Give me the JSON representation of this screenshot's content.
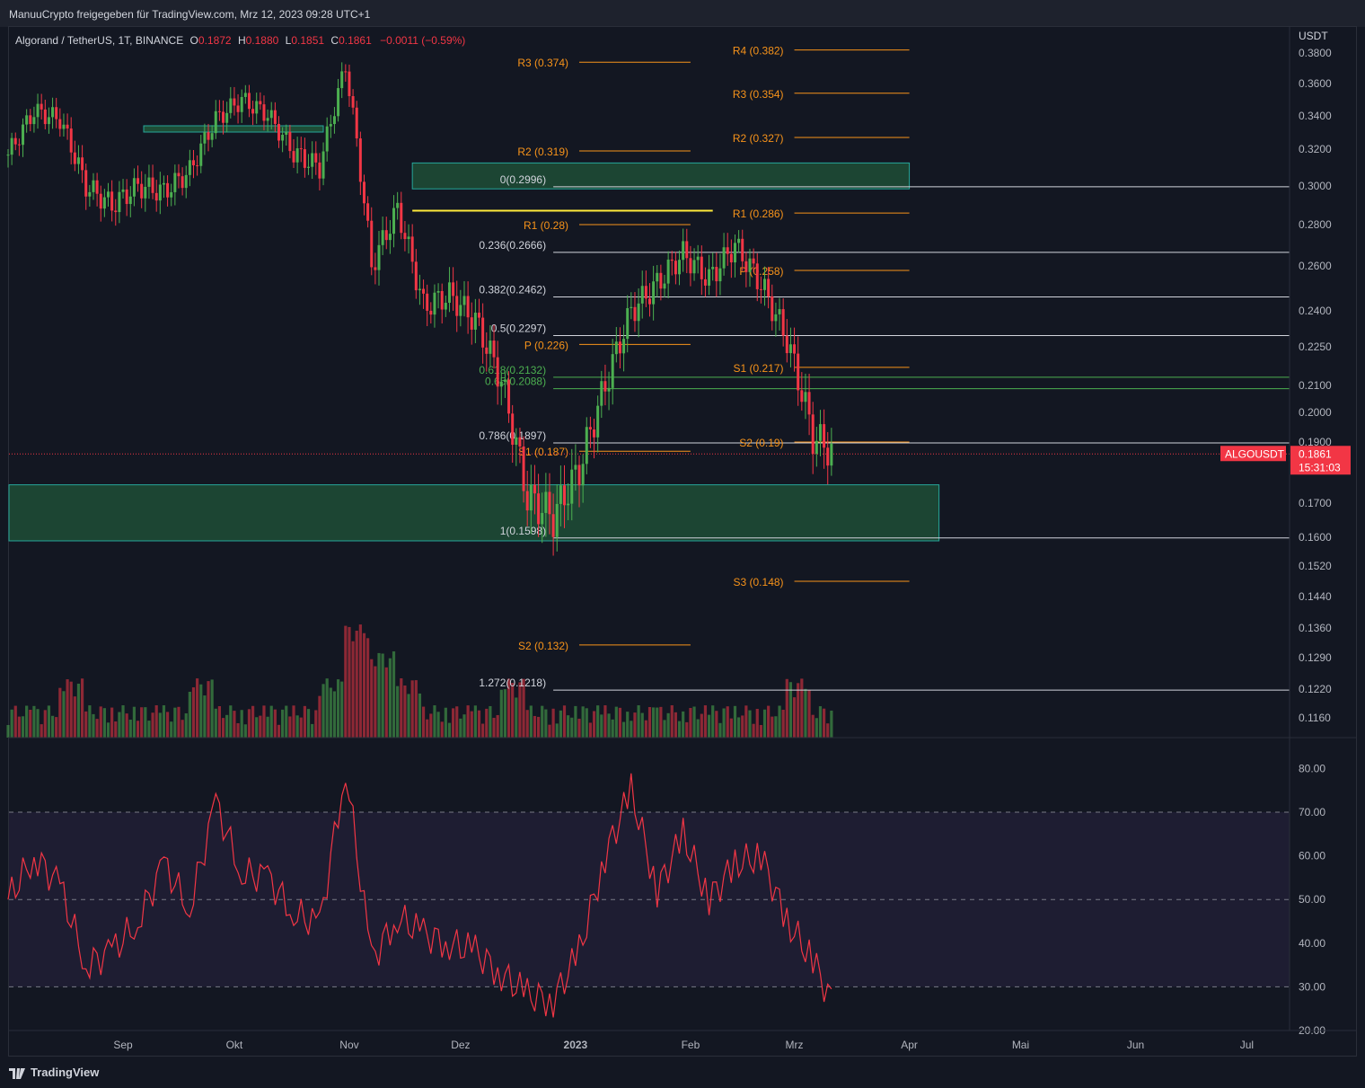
{
  "header": {
    "share_text": "ManuuCrypto freigegeben für TradingView.com, Mrz 12, 2023 09:28 UTC+1"
  },
  "legend": {
    "pair": "Algorand / TetherUS, 1T, BINANCE",
    "open_label": "O",
    "open": "0.1872",
    "high_label": "H",
    "high": "0.1880",
    "low_label": "L",
    "low": "0.1851",
    "close_label": "C",
    "close": "0.1861",
    "change": "−0.0011 (−0.59%)"
  },
  "footer": {
    "brand": "TradingView"
  },
  "colors": {
    "up": "#26a69a",
    "candle_up": "#4caf50",
    "down": "#f23645",
    "pivot": "#f7931a",
    "fib_green": "#4caf50",
    "zone": "#1e4d36",
    "rsi": "#f23645",
    "rsi_band": "#7e57c2",
    "background": "#131722"
  },
  "chart_data": [
    {
      "type": "candlestick",
      "symbol": "ALGOUSDT",
      "price_axis_unit": "USDT",
      "price_ticks": [
        "0.3800",
        "0.3600",
        "0.3400",
        "0.3200",
        "0.3000",
        "0.2800",
        "0.2600",
        "0.2400",
        "0.2250",
        "0.2100",
        "0.2000",
        "0.1900",
        "0.1700",
        "0.1600",
        "0.1520",
        "0.1440",
        "0.1360",
        "0.1290",
        "0.1220",
        "0.1160"
      ],
      "x_ticks": [
        "Sep",
        "Okt",
        "Nov",
        "Dez",
        "2023",
        "Feb",
        "Mrz",
        "Apr",
        "Mai",
        "Jun",
        "Jul"
      ],
      "last_price": {
        "label": "ALGOUSDT",
        "value": "0.1861",
        "countdown": "15:31:03"
      },
      "fibonacci": [
        {
          "label": "0(0.2996)",
          "value": 0.2996
        },
        {
          "label": "0.236(0.2666)",
          "value": 0.2666
        },
        {
          "label": "0.382(0.2462)",
          "value": 0.2462
        },
        {
          "label": "0.5(0.2297)",
          "value": 0.2297
        },
        {
          "label": "0.618(0.2132)",
          "value": 0.2132
        },
        {
          "label": "0.65(0.2088)",
          "value": 0.2088
        },
        {
          "label": "0.786(0.1897)",
          "value": 0.1897
        },
        {
          "label": "1(0.1598)",
          "value": 0.1598
        },
        {
          "label": "1.272(0.1218)",
          "value": 0.1218
        }
      ],
      "pivots_january": [
        {
          "label": "R3 (0.374)",
          "value": 0.374
        },
        {
          "label": "R2 (0.319)",
          "value": 0.319
        },
        {
          "label": "R1 (0.28)",
          "value": 0.28
        },
        {
          "label": "P (0.226)",
          "value": 0.226
        },
        {
          "label": "S1 (0.187)",
          "value": 0.187
        },
        {
          "label": "S2 (0.132)",
          "value": 0.132
        }
      ],
      "pivots_february": [
        {
          "label": "R4 (0.382)",
          "value": 0.382
        },
        {
          "label": "R3 (0.354)",
          "value": 0.354
        },
        {
          "label": "R2 (0.327)",
          "value": 0.327
        },
        {
          "label": "R1 (0.286)",
          "value": 0.286
        },
        {
          "label": "P (0.258)",
          "value": 0.258
        },
        {
          "label": "S1 (0.217)",
          "value": 0.217
        },
        {
          "label": "S2 (0.19)",
          "value": 0.19
        },
        {
          "label": "S3 (0.148)",
          "value": 0.148
        }
      ],
      "zones": [
        {
          "from_date": "2022-11-18",
          "to_date": "2023-04-01",
          "low": 0.2985,
          "high": 0.3125
        },
        {
          "from_date": "2022-08-01",
          "to_date": "2023-04-09",
          "low": 0.159,
          "high": 0.176
        }
      ],
      "candles_close_approx": [
        {
          "date": "2022-08-01",
          "close": 0.317
        },
        {
          "date": "2022-08-08",
          "close": 0.343
        },
        {
          "date": "2022-08-15",
          "close": 0.338
        },
        {
          "date": "2022-08-22",
          "close": 0.3
        },
        {
          "date": "2022-08-29",
          "close": 0.29
        },
        {
          "date": "2022-09-05",
          "close": 0.3
        },
        {
          "date": "2022-09-12",
          "close": 0.297
        },
        {
          "date": "2022-09-19",
          "close": 0.308
        },
        {
          "date": "2022-09-26",
          "close": 0.338
        },
        {
          "date": "2022-10-03",
          "close": 0.35
        },
        {
          "date": "2022-10-10",
          "close": 0.341
        },
        {
          "date": "2022-10-17",
          "close": 0.318
        },
        {
          "date": "2022-10-24",
          "close": 0.31
        },
        {
          "date": "2022-10-31",
          "close": 0.372
        },
        {
          "date": "2022-11-07",
          "close": 0.26
        },
        {
          "date": "2022-11-14",
          "close": 0.288
        },
        {
          "date": "2022-11-21",
          "close": 0.242
        },
        {
          "date": "2022-11-28",
          "close": 0.247
        },
        {
          "date": "2022-12-05",
          "close": 0.236
        },
        {
          "date": "2022-12-12",
          "close": 0.212
        },
        {
          "date": "2022-12-19",
          "close": 0.172
        },
        {
          "date": "2022-12-26",
          "close": 0.166
        },
        {
          "date": "2023-01-02",
          "close": 0.181
        },
        {
          "date": "2023-01-09",
          "close": 0.21
        },
        {
          "date": "2023-01-16",
          "close": 0.24
        },
        {
          "date": "2023-01-23",
          "close": 0.252
        },
        {
          "date": "2023-01-30",
          "close": 0.266
        },
        {
          "date": "2023-02-06",
          "close": 0.254
        },
        {
          "date": "2023-02-13",
          "close": 0.27
        },
        {
          "date": "2023-02-20",
          "close": 0.252
        },
        {
          "date": "2023-02-27",
          "close": 0.228
        },
        {
          "date": "2023-03-06",
          "close": 0.192
        },
        {
          "date": "2023-03-12",
          "close": 0.1861
        }
      ]
    },
    {
      "type": "line",
      "name": "RSI",
      "y_ticks": [
        "80.00",
        "70.00",
        "60.00",
        "50.00",
        "40.00",
        "30.00",
        "20.00"
      ],
      "band": [
        30,
        70
      ],
      "x": [
        "2022-08-01",
        "2022-08-08",
        "2022-08-15",
        "2022-08-22",
        "2022-08-29",
        "2022-09-05",
        "2022-09-12",
        "2022-09-19",
        "2022-09-26",
        "2022-10-03",
        "2022-10-10",
        "2022-10-17",
        "2022-10-24",
        "2022-10-31",
        "2022-11-07",
        "2022-11-14",
        "2022-11-21",
        "2022-11-28",
        "2022-12-05",
        "2022-12-12",
        "2022-12-19",
        "2022-12-26",
        "2023-01-02",
        "2023-01-09",
        "2023-01-16",
        "2023-01-23",
        "2023-01-30",
        "2023-02-06",
        "2023-02-13",
        "2023-02-20",
        "2023-02-27",
        "2023-03-06",
        "2023-03-12"
      ],
      "values": [
        50,
        60,
        53,
        35,
        38,
        45,
        58,
        48,
        72,
        56,
        55,
        47,
        44,
        80,
        36,
        46,
        42,
        40,
        38,
        33,
        28,
        27,
        38,
        60,
        75,
        52,
        65,
        50,
        58,
        60,
        45,
        36,
        25
      ]
    }
  ]
}
